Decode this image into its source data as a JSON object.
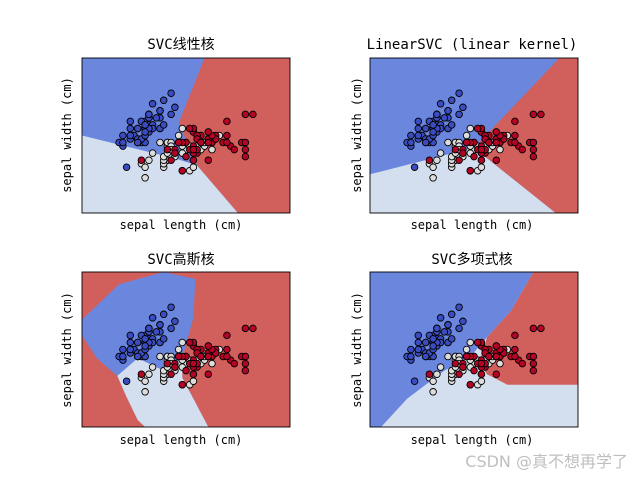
{
  "colors": {
    "class0": "#3b4cc0",
    "class1": "#dddddd",
    "class2": "#b40426",
    "region0": "#6b86dd",
    "region1": "#d3deef",
    "region2": "#d1605d",
    "point_edge": "#000000"
  },
  "chart_data": [
    {
      "type": "scatter",
      "title": "SVC线性核",
      "xlabel": "sepal length (cm)",
      "ylabel": "sepal width (cm)",
      "xlim": [
        3.3,
        8.9
      ],
      "ylim": [
        1.0,
        5.4
      ],
      "xticks": [],
      "yticks": [],
      "boundaries": [
        {
          "name": "class0-class1",
          "points": [
            [
              3.3,
              3.2
            ],
            [
              5.8,
              2.55
            ],
            [
              6.4,
              2.35
            ]
          ]
        },
        {
          "name": "class1-class2",
          "points": [
            [
              6.4,
              2.35
            ],
            [
              7.5,
              1.0
            ]
          ]
        },
        {
          "name": "class0-class2",
          "points": [
            [
              6.4,
              2.35
            ],
            [
              5.9,
              3.55
            ],
            [
              6.6,
              5.4
            ]
          ]
        }
      ]
    },
    {
      "type": "scatter",
      "title": "LinearSVC (linear kernel)",
      "xlabel": "sepal length (cm)",
      "ylabel": "sepal width (cm)",
      "xlim": [
        3.3,
        8.9
      ],
      "ylim": [
        1.0,
        5.4
      ],
      "xticks": [],
      "yticks": [],
      "boundaries": [
        {
          "name": "class0-class1",
          "points": [
            [
              3.3,
              2.1
            ],
            [
              6.1,
              2.85
            ]
          ]
        },
        {
          "name": "class1-class2",
          "points": [
            [
              6.1,
              2.85
            ],
            [
              8.3,
              1.0
            ]
          ]
        },
        {
          "name": "class0-class2",
          "points": [
            [
              6.1,
              2.85
            ],
            [
              8.4,
              5.4
            ]
          ]
        }
      ]
    },
    {
      "type": "scatter",
      "title": "SVC高斯核",
      "xlabel": "sepal length (cm)",
      "ylabel": "sepal width (cm)",
      "xlim": [
        3.3,
        8.9
      ],
      "ylim": [
        1.0,
        5.4
      ],
      "xticks": [],
      "yticks": [],
      "boundaries": [
        {
          "name": "class0-region",
          "points": [
            [
              3.3,
              3.6
            ],
            [
              3.7,
              2.95
            ],
            [
              4.25,
              2.45
            ],
            [
              4.5,
              1.85
            ],
            [
              4.8,
              1.2
            ],
            [
              5.0,
              1.0
            ],
            [
              6.7,
              1.0
            ],
            [
              6.0,
              2.4
            ],
            [
              6.0,
              2.95
            ],
            [
              6.3,
              4.1
            ],
            [
              6.35,
              5.2
            ],
            [
              5.5,
              5.4
            ],
            [
              4.3,
              5.05
            ],
            [
              3.3,
              4.05
            ]
          ]
        },
        {
          "name": "class1-region",
          "points": [
            [
              5.0,
              1.0
            ],
            [
              4.8,
              1.2
            ],
            [
              4.5,
              1.85
            ],
            [
              4.25,
              2.45
            ],
            [
              4.8,
              2.95
            ],
            [
              5.5,
              2.6
            ],
            [
              6.0,
              2.95
            ],
            [
              6.0,
              2.4
            ],
            [
              6.7,
              1.0
            ]
          ]
        }
      ]
    },
    {
      "type": "scatter",
      "title": "SVC多项式核",
      "xlabel": "sepal length (cm)",
      "ylabel": "sepal width (cm)",
      "xlim": [
        3.3,
        8.9
      ],
      "ylim": [
        1.0,
        5.4
      ],
      "xticks": [],
      "yticks": [],
      "boundaries": [
        {
          "name": "class0-region",
          "points": [
            [
              3.3,
              1.0
            ],
            [
              3.6,
              1.0
            ],
            [
              4.3,
              1.8
            ],
            [
              5.3,
              2.6
            ],
            [
              6.0,
              3.0
            ],
            [
              6.45,
              3.55
            ],
            [
              7.1,
              4.3
            ],
            [
              7.7,
              5.4
            ],
            [
              3.3,
              5.4
            ]
          ]
        },
        {
          "name": "class2-region",
          "points": [
            [
              6.45,
              3.55
            ],
            [
              6.25,
              2.85
            ],
            [
              6.45,
              2.5
            ],
            [
              7.0,
              2.2
            ],
            [
              8.9,
              2.2
            ],
            [
              8.9,
              5.4
            ],
            [
              7.7,
              5.4
            ],
            [
              7.1,
              4.3
            ]
          ]
        }
      ]
    }
  ],
  "iris_points": {
    "x": [
      5.1,
      4.9,
      4.7,
      4.6,
      5.0,
      5.4,
      4.6,
      5.0,
      4.4,
      4.9,
      5.4,
      4.8,
      4.8,
      4.3,
      5.8,
      5.7,
      5.4,
      5.1,
      5.7,
      5.1,
      5.4,
      5.1,
      4.6,
      5.1,
      4.8,
      5.0,
      5.0,
      5.2,
      5.2,
      4.7,
      4.8,
      5.4,
      5.2,
      5.5,
      4.9,
      5.0,
      5.5,
      4.9,
      4.4,
      5.1,
      5.0,
      4.5,
      4.4,
      5.0,
      5.1,
      4.8,
      5.1,
      4.6,
      5.3,
      5.0,
      7.0,
      6.4,
      6.9,
      5.5,
      6.5,
      5.7,
      6.3,
      4.9,
      6.6,
      5.2,
      5.0,
      5.9,
      6.0,
      6.1,
      5.6,
      6.7,
      5.6,
      5.8,
      6.2,
      5.6,
      5.9,
      6.1,
      6.3,
      6.1,
      6.4,
      6.6,
      6.8,
      6.7,
      6.0,
      5.7,
      5.5,
      5.5,
      5.8,
      6.0,
      5.4,
      6.0,
      6.7,
      6.3,
      5.6,
      5.5,
      5.5,
      6.1,
      5.8,
      5.0,
      5.6,
      5.7,
      5.7,
      6.2,
      5.1,
      5.7,
      6.3,
      5.8,
      7.1,
      6.3,
      6.5,
      7.6,
      4.9,
      7.3,
      6.7,
      7.2,
      6.5,
      6.4,
      6.8,
      5.7,
      5.8,
      6.4,
      6.5,
      7.7,
      7.7,
      6.0,
      6.9,
      5.6,
      7.7,
      6.3,
      6.7,
      7.2,
      6.2,
      6.1,
      6.4,
      7.2,
      7.4,
      7.9,
      6.4,
      6.3,
      6.1,
      7.7,
      6.3,
      6.4,
      6.0,
      6.9,
      6.7,
      6.9,
      5.8,
      6.8,
      6.7,
      6.7,
      6.3,
      6.5,
      6.2,
      5.9
    ],
    "y": [
      3.5,
      3.0,
      3.2,
      3.1,
      3.6,
      3.9,
      3.4,
      3.4,
      2.9,
      3.1,
      3.7,
      3.4,
      3.0,
      3.0,
      4.0,
      4.4,
      3.9,
      3.5,
      3.8,
      3.8,
      3.4,
      3.7,
      3.6,
      3.3,
      3.4,
      3.0,
      3.4,
      3.5,
      3.4,
      3.2,
      3.1,
      3.4,
      4.1,
      4.2,
      3.1,
      3.2,
      3.5,
      3.6,
      3.0,
      3.4,
      3.5,
      2.3,
      3.2,
      3.5,
      3.8,
      3.0,
      3.8,
      3.2,
      3.7,
      3.3,
      3.2,
      3.2,
      3.1,
      2.3,
      2.8,
      2.8,
      3.3,
      2.4,
      2.9,
      2.7,
      2.0,
      3.0,
      2.2,
      2.9,
      2.9,
      3.1,
      3.0,
      2.7,
      2.2,
      2.5,
      3.2,
      2.8,
      2.5,
      2.8,
      2.9,
      3.0,
      2.8,
      3.0,
      2.9,
      2.6,
      2.4,
      2.4,
      2.7,
      2.7,
      3.0,
      3.4,
      3.1,
      2.3,
      3.0,
      2.5,
      2.6,
      3.0,
      2.6,
      2.3,
      2.7,
      3.0,
      2.9,
      2.9,
      2.5,
      2.8,
      3.3,
      2.7,
      3.0,
      2.9,
      3.0,
      3.0,
      2.5,
      2.9,
      2.5,
      3.6,
      3.2,
      2.7,
      3.0,
      2.5,
      2.8,
      3.2,
      3.0,
      3.8,
      2.6,
      2.2,
      3.2,
      2.8,
      2.8,
      2.7,
      3.3,
      3.2,
      2.8,
      3.0,
      2.8,
      3.0,
      2.8,
      3.8,
      2.8,
      2.8,
      2.6,
      3.0,
      3.4,
      3.1,
      3.0,
      3.1,
      3.1,
      3.1,
      2.7,
      3.2,
      3.3,
      3.0,
      2.5,
      3.0,
      3.4,
      3.0
    ],
    "class": [
      0,
      0,
      0,
      0,
      0,
      0,
      0,
      0,
      0,
      0,
      0,
      0,
      0,
      0,
      0,
      0,
      0,
      0,
      0,
      0,
      0,
      0,
      0,
      0,
      0,
      0,
      0,
      0,
      0,
      0,
      0,
      0,
      0,
      0,
      0,
      0,
      0,
      0,
      0,
      0,
      0,
      0,
      0,
      0,
      0,
      0,
      0,
      0,
      0,
      0,
      1,
      1,
      1,
      1,
      1,
      1,
      1,
      1,
      1,
      1,
      1,
      1,
      1,
      1,
      1,
      1,
      1,
      1,
      1,
      1,
      1,
      1,
      1,
      1,
      1,
      1,
      1,
      1,
      1,
      1,
      1,
      1,
      1,
      1,
      1,
      1,
      1,
      1,
      1,
      1,
      1,
      1,
      1,
      1,
      1,
      1,
      1,
      1,
      1,
      1,
      2,
      2,
      2,
      2,
      2,
      2,
      2,
      2,
      2,
      2,
      2,
      2,
      2,
      2,
      2,
      2,
      2,
      2,
      2,
      2,
      2,
      2,
      2,
      2,
      2,
      2,
      2,
      2,
      2,
      2,
      2,
      2,
      2,
      2,
      2,
      2,
      2,
      2,
      2,
      2,
      2,
      2,
      2,
      2,
      2,
      2,
      2,
      2,
      2,
      2
    ]
  },
  "watermark": "CSDN @真不想再学了"
}
